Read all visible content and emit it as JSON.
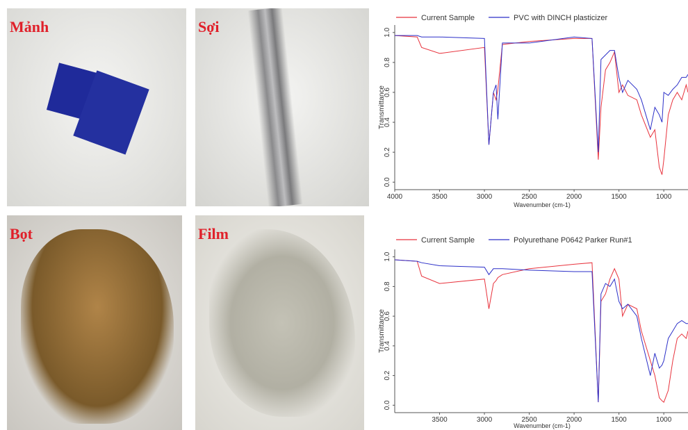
{
  "photos": [
    {
      "label": "Mảnh"
    },
    {
      "label": "Sợi"
    },
    {
      "label": "Bọt"
    },
    {
      "label": "Film"
    }
  ],
  "chart_data": [
    {
      "type": "line",
      "x_label": "Wavenumber (cm-1)",
      "y_label": "Transmittance",
      "x": [
        4000,
        3750,
        3700,
        3500,
        3000,
        2950,
        2900,
        2870,
        2850,
        2800,
        2500,
        2000,
        1800,
        1730,
        1700,
        1650,
        1600,
        1550,
        1500,
        1460,
        1400,
        1300,
        1250,
        1150,
        1100,
        1050,
        1020,
        1000,
        950,
        900,
        850,
        800,
        750,
        730
      ],
      "xlim": [
        4000,
        730
      ],
      "xticks": [
        4000,
        3500,
        3000,
        2500,
        2000,
        1500,
        1000
      ],
      "ylim": [
        -0.05,
        1.05
      ],
      "yticks": [
        {
          "value": 0,
          "label": "0.0"
        },
        0.2,
        0.4,
        0.6,
        0.8,
        {
          "value": 1,
          "label": "1.0"
        }
      ],
      "series": [
        {
          "name": "Current Sample",
          "color": "#e8323c",
          "values": [
            0.98,
            0.97,
            0.9,
            0.86,
            0.9,
            0.25,
            0.6,
            0.55,
            0.62,
            0.92,
            0.94,
            0.96,
            0.96,
            0.15,
            0.5,
            0.75,
            0.8,
            0.87,
            0.6,
            0.65,
            0.58,
            0.55,
            0.45,
            0.3,
            0.35,
            0.1,
            0.05,
            0.15,
            0.45,
            0.55,
            0.6,
            0.55,
            0.65,
            0.6
          ]
        },
        {
          "name": "PVC with DINCH plasticizer",
          "color": "#2b2fc8",
          "values": [
            0.98,
            0.98,
            0.97,
            0.97,
            0.96,
            0.25,
            0.6,
            0.65,
            0.42,
            0.93,
            0.93,
            0.97,
            0.96,
            0.2,
            0.82,
            0.85,
            0.88,
            0.88,
            0.7,
            0.6,
            0.68,
            0.62,
            0.55,
            0.35,
            0.5,
            0.45,
            0.4,
            0.6,
            0.58,
            0.62,
            0.65,
            0.7,
            0.7,
            0.72
          ]
        }
      ]
    },
    {
      "type": "line",
      "x_label": "Wavenumber (cm-1)",
      "y_label": "Transmittance",
      "x": [
        4000,
        3750,
        3700,
        3500,
        3000,
        2950,
        2900,
        2870,
        2850,
        2800,
        2500,
        2000,
        1800,
        1730,
        1700,
        1650,
        1600,
        1550,
        1500,
        1460,
        1400,
        1300,
        1250,
        1150,
        1100,
        1050,
        1020,
        1000,
        950,
        900,
        850,
        800,
        750,
        730
      ],
      "xlim": [
        4000,
        730
      ],
      "xticks": [
        3500,
        3000,
        2500,
        2000,
        1500,
        1000
      ],
      "ylim": [
        -0.05,
        1.05
      ],
      "yticks": [
        {
          "value": 0,
          "label": "0.0"
        },
        0.2,
        0.4,
        0.6,
        0.8,
        {
          "value": 1,
          "label": "1.0"
        }
      ],
      "series": [
        {
          "name": "Current Sample",
          "color": "#e8323c",
          "values": [
            0.98,
            0.97,
            0.87,
            0.82,
            0.85,
            0.65,
            0.82,
            0.84,
            0.86,
            0.88,
            0.92,
            0.95,
            0.96,
            0.02,
            0.7,
            0.75,
            0.85,
            0.92,
            0.85,
            0.6,
            0.68,
            0.65,
            0.5,
            0.3,
            0.2,
            0.05,
            0.03,
            0.02,
            0.1,
            0.3,
            0.45,
            0.48,
            0.45,
            0.5
          ]
        },
        {
          "name": "Polyurethane P0642 Parker Run#1",
          "color": "#2b2fc8",
          "values": [
            0.98,
            0.97,
            0.96,
            0.94,
            0.93,
            0.88,
            0.92,
            0.92,
            0.92,
            0.92,
            0.91,
            0.9,
            0.9,
            0.02,
            0.75,
            0.82,
            0.8,
            0.85,
            0.7,
            0.65,
            0.68,
            0.6,
            0.45,
            0.2,
            0.35,
            0.25,
            0.27,
            0.3,
            0.45,
            0.5,
            0.55,
            0.57,
            0.55,
            0.55
          ]
        }
      ]
    }
  ]
}
